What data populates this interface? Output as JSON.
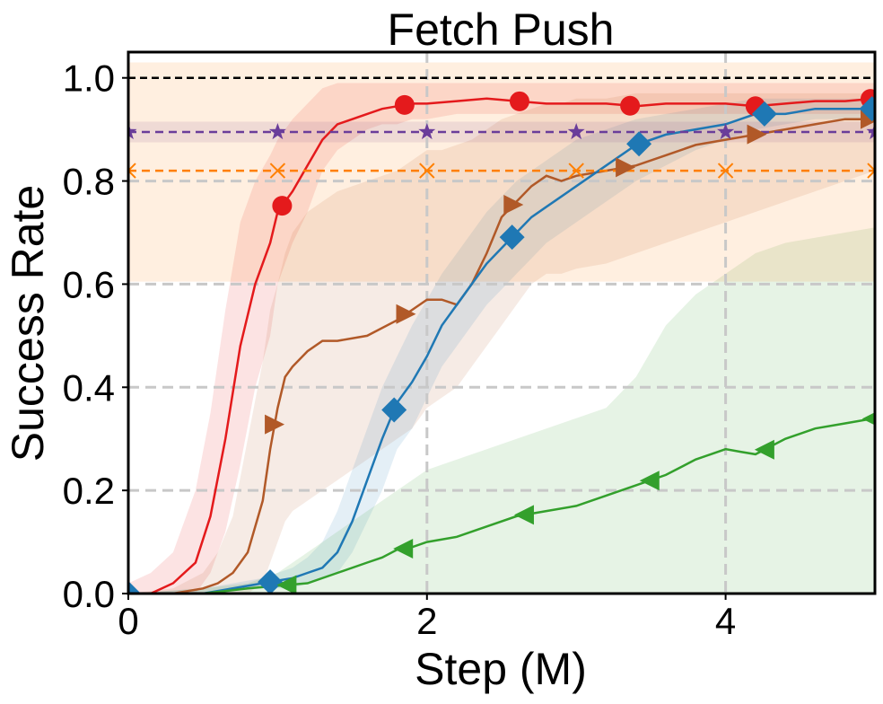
{
  "chart_data": {
    "type": "line",
    "title": "Fetch Push",
    "xlabel": "Step (M)",
    "ylabel": "Success Rate",
    "xlim": [
      0,
      5
    ],
    "ylim": [
      0,
      1.05
    ],
    "xticks": [
      0,
      2,
      4
    ],
    "xtick_labels": [
      "0",
      "2",
      "4"
    ],
    "yticks": [
      0.0,
      0.2,
      0.4,
      0.6,
      0.8,
      1.0
    ],
    "ytick_labels": [
      "0.0",
      "0.2",
      "0.4",
      "0.6",
      "0.8",
      "1.0"
    ],
    "grid": true,
    "legend": "none",
    "reference_lines": [
      {
        "y": 1.0,
        "color": "#000000",
        "style": "dashed"
      }
    ],
    "series": [
      {
        "color": "#e41a1c",
        "marker": "circle",
        "x": [
          0,
          0.15,
          0.3,
          0.45,
          0.55,
          0.65,
          0.75,
          0.85,
          0.95,
          1.0,
          1.1,
          1.2,
          1.3,
          1.4,
          1.5,
          1.6,
          1.7,
          1.8,
          1.9,
          2.0,
          2.2,
          2.4,
          2.6,
          2.8,
          3.0,
          3.2,
          3.4,
          3.6,
          3.8,
          4.0,
          4.2,
          4.4,
          4.6,
          4.8,
          5.0
        ],
        "y": [
          0.0,
          0.0,
          0.02,
          0.06,
          0.15,
          0.3,
          0.48,
          0.6,
          0.68,
          0.74,
          0.78,
          0.83,
          0.88,
          0.91,
          0.92,
          0.93,
          0.94,
          0.945,
          0.95,
          0.95,
          0.955,
          0.96,
          0.955,
          0.95,
          0.95,
          0.95,
          0.945,
          0.95,
          0.95,
          0.95,
          0.945,
          0.95,
          0.955,
          0.955,
          0.96
        ],
        "upper": [
          0.02,
          0.04,
          0.08,
          0.2,
          0.35,
          0.55,
          0.72,
          0.8,
          0.85,
          0.88,
          0.92,
          0.95,
          0.98,
          0.99,
          0.99,
          0.99,
          0.99,
          0.99,
          0.99,
          0.99,
          0.99,
          0.99,
          0.99,
          0.99,
          0.99,
          0.99,
          0.99,
          0.99,
          0.99,
          0.99,
          0.99,
          0.99,
          0.99,
          0.99,
          0.99
        ],
        "lower": [
          0.0,
          0.0,
          0.0,
          0.0,
          0.04,
          0.12,
          0.25,
          0.4,
          0.5,
          0.6,
          0.68,
          0.74,
          0.82,
          0.86,
          0.88,
          0.9,
          0.91,
          0.91,
          0.92,
          0.92,
          0.93,
          0.93,
          0.93,
          0.93,
          0.93,
          0.93,
          0.93,
          0.93,
          0.93,
          0.93,
          0.93,
          0.93,
          0.93,
          0.93,
          0.93
        ],
        "marker_x": [
          1.03,
          1.85,
          2.62,
          3.36,
          4.2,
          4.97
        ]
      },
      {
        "color": "#b15928",
        "marker": "triangle-right",
        "x": [
          0,
          0.3,
          0.5,
          0.6,
          0.7,
          0.8,
          0.9,
          0.95,
          1.0,
          1.05,
          1.1,
          1.2,
          1.3,
          1.4,
          1.6,
          1.8,
          1.9,
          2.0,
          2.1,
          2.2,
          2.3,
          2.4,
          2.5,
          2.6,
          2.7,
          2.8,
          2.9,
          3.0,
          3.2,
          3.4,
          3.6,
          3.8,
          4.0,
          4.2,
          4.4,
          4.6,
          4.8,
          5.0
        ],
        "y": [
          0.0,
          0.0,
          0.01,
          0.02,
          0.04,
          0.08,
          0.18,
          0.28,
          0.36,
          0.42,
          0.44,
          0.47,
          0.49,
          0.49,
          0.5,
          0.53,
          0.55,
          0.57,
          0.57,
          0.56,
          0.6,
          0.66,
          0.73,
          0.76,
          0.79,
          0.81,
          0.8,
          0.81,
          0.82,
          0.83,
          0.85,
          0.87,
          0.88,
          0.89,
          0.9,
          0.91,
          0.92,
          0.92
        ],
        "upper": [
          0.0,
          0.01,
          0.04,
          0.08,
          0.15,
          0.3,
          0.45,
          0.55,
          0.6,
          0.66,
          0.7,
          0.74,
          0.76,
          0.78,
          0.8,
          0.82,
          0.84,
          0.86,
          0.86,
          0.87,
          0.88,
          0.9,
          0.92,
          0.93,
          0.94,
          0.95,
          0.95,
          0.96,
          0.96,
          0.97,
          0.97,
          0.97,
          0.97,
          0.97,
          0.97,
          0.97,
          0.97,
          0.97
        ],
        "lower": [
          0.0,
          0.0,
          0.0,
          0.0,
          0.0,
          0.0,
          0.02,
          0.06,
          0.1,
          0.14,
          0.16,
          0.18,
          0.2,
          0.22,
          0.26,
          0.3,
          0.32,
          0.36,
          0.38,
          0.4,
          0.44,
          0.48,
          0.52,
          0.56,
          0.6,
          0.62,
          0.62,
          0.63,
          0.64,
          0.66,
          0.68,
          0.7,
          0.72,
          0.74,
          0.76,
          0.78,
          0.8,
          0.82
        ],
        "marker_x": [
          0.98,
          1.86,
          2.58,
          3.33,
          4.21,
          4.97
        ]
      },
      {
        "color": "#1f78b4",
        "marker": "diamond",
        "x": [
          0,
          0.5,
          0.9,
          1.0,
          1.1,
          1.2,
          1.3,
          1.4,
          1.5,
          1.6,
          1.7,
          1.8,
          1.9,
          2.0,
          2.1,
          2.2,
          2.3,
          2.4,
          2.5,
          2.6,
          2.7,
          2.8,
          2.9,
          3.0,
          3.2,
          3.4,
          3.6,
          3.8,
          4.0,
          4.2,
          4.4,
          4.6,
          4.8,
          5.0
        ],
        "y": [
          0.0,
          0.0,
          0.02,
          0.025,
          0.03,
          0.04,
          0.05,
          0.08,
          0.14,
          0.22,
          0.3,
          0.37,
          0.41,
          0.46,
          0.52,
          0.56,
          0.6,
          0.64,
          0.67,
          0.7,
          0.73,
          0.75,
          0.77,
          0.79,
          0.83,
          0.87,
          0.89,
          0.9,
          0.91,
          0.93,
          0.93,
          0.94,
          0.94,
          0.94
        ],
        "upper": [
          0.0,
          0.01,
          0.03,
          0.04,
          0.05,
          0.07,
          0.1,
          0.16,
          0.24,
          0.32,
          0.4,
          0.46,
          0.52,
          0.57,
          0.62,
          0.66,
          0.7,
          0.74,
          0.77,
          0.8,
          0.82,
          0.84,
          0.86,
          0.88,
          0.9,
          0.92,
          0.93,
          0.94,
          0.95,
          0.96,
          0.96,
          0.96,
          0.96,
          0.96
        ],
        "lower": [
          0.0,
          0.0,
          0.01,
          0.01,
          0.01,
          0.02,
          0.03,
          0.04,
          0.08,
          0.14,
          0.2,
          0.28,
          0.32,
          0.38,
          0.44,
          0.48,
          0.52,
          0.56,
          0.59,
          0.62,
          0.65,
          0.68,
          0.7,
          0.72,
          0.76,
          0.8,
          0.83,
          0.86,
          0.88,
          0.9,
          0.91,
          0.92,
          0.92,
          0.92
        ],
        "marker_x": [
          0.0,
          0.95,
          1.78,
          2.57,
          3.42,
          4.26,
          4.98
        ]
      },
      {
        "color": "#33a02c",
        "marker": "triangle-left",
        "x": [
          0,
          0.5,
          0.8,
          1.0,
          1.2,
          1.4,
          1.6,
          1.7,
          1.8,
          1.9,
          2.0,
          2.2,
          2.4,
          2.6,
          2.8,
          3.0,
          3.2,
          3.4,
          3.6,
          3.8,
          3.9,
          4.0,
          4.1,
          4.2,
          4.4,
          4.6,
          4.8,
          5.0
        ],
        "y": [
          0.0,
          0.0,
          0.01,
          0.015,
          0.02,
          0.04,
          0.06,
          0.07,
          0.085,
          0.09,
          0.1,
          0.11,
          0.13,
          0.15,
          0.16,
          0.17,
          0.19,
          0.21,
          0.23,
          0.26,
          0.27,
          0.28,
          0.275,
          0.27,
          0.3,
          0.32,
          0.33,
          0.34
        ],
        "upper": [
          0.0,
          0.01,
          0.02,
          0.04,
          0.08,
          0.12,
          0.16,
          0.18,
          0.2,
          0.22,
          0.24,
          0.26,
          0.28,
          0.3,
          0.32,
          0.34,
          0.36,
          0.42,
          0.52,
          0.58,
          0.6,
          0.62,
          0.64,
          0.66,
          0.68,
          0.69,
          0.7,
          0.71
        ],
        "lower": [
          0.0,
          0.0,
          0.0,
          0.0,
          0.0,
          0.0,
          0.0,
          0.0,
          0.0,
          0.0,
          0.0,
          0.0,
          0.0,
          0.0,
          0.0,
          0.0,
          0.0,
          0.0,
          0.0,
          0.0,
          0.0,
          0.0,
          0.0,
          0.0,
          0.0,
          0.0,
          0.0,
          0.0
        ],
        "marker_x": [
          1.06,
          1.84,
          2.65,
          3.49,
          4.26,
          4.98
        ]
      },
      {
        "color": "#6a3d9a",
        "marker": "star",
        "style": "dashed",
        "x": [
          0,
          5
        ],
        "y": [
          0.895,
          0.895
        ],
        "upper": [
          0.915,
          0.915
        ],
        "lower": [
          0.875,
          0.875
        ],
        "marker_x": [
          0.0,
          1.0,
          2.0,
          3.0,
          4.0,
          5.0
        ]
      },
      {
        "color": "#ff7f00",
        "marker": "x",
        "style": "dashed",
        "x": [
          0,
          5
        ],
        "y": [
          0.82,
          0.82
        ],
        "upper": [
          1.03,
          1.03
        ],
        "lower": [
          0.605,
          0.605
        ],
        "marker_x": [
          0.0,
          1.0,
          2.0,
          3.0,
          4.0,
          5.0
        ]
      }
    ]
  }
}
